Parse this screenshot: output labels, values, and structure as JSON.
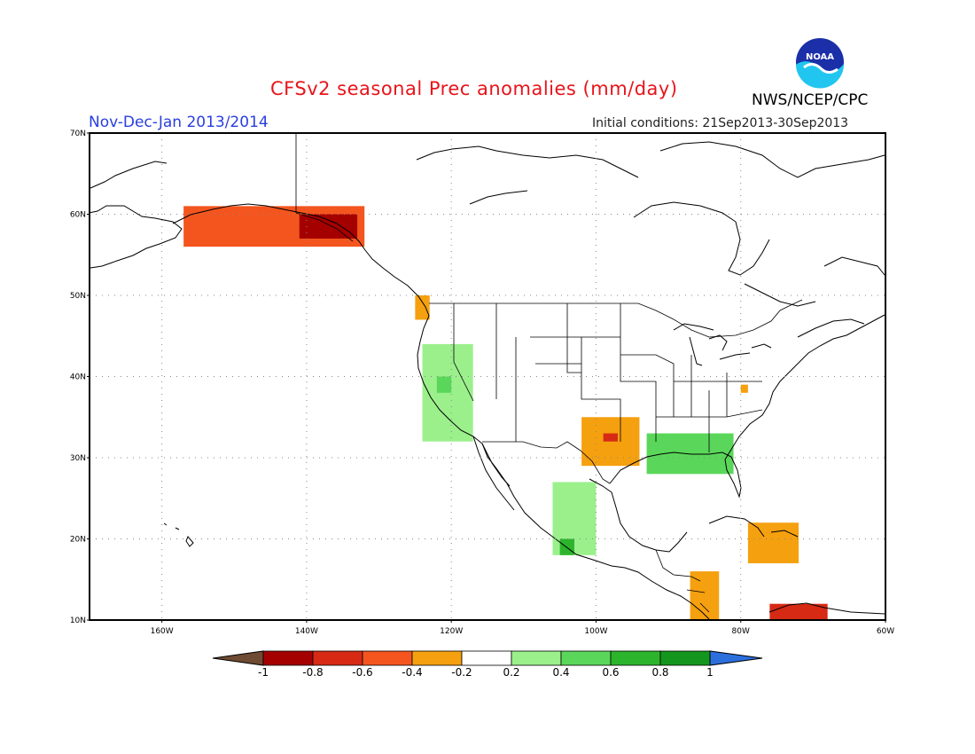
{
  "header": {
    "title": "CFSv2 seasonal Prec anomalies (mm/day)",
    "period": "Nov-Dec-Jan 2013/2014",
    "initial_conditions": "Initial conditions: 21Sep2013-30Sep2013",
    "agency": "NWS/NCEP/CPC",
    "logo_text": "NOAA"
  },
  "map": {
    "lat_labels": [
      "70N",
      "60N",
      "50N",
      "40N",
      "30N",
      "20N",
      "10N"
    ],
    "lon_labels": [
      "160W",
      "140W",
      "120W",
      "100W",
      "80W",
      "60W"
    ],
    "lat_range": [
      10,
      70
    ],
    "lon_range": [
      -170,
      -60
    ],
    "grid": "dotted every 10 degrees"
  },
  "colorbar": {
    "labels": [
      "-1",
      "-0.8",
      "-0.6",
      "-0.4",
      "-0.2",
      "0.2",
      "0.4",
      "0.6",
      "0.8",
      "1"
    ],
    "colors": {
      "below_-1": "#6e4b32",
      "-1_-0.8": "#a50000",
      "-0.8_-0.6": "#d62a14",
      "-0.6_-0.4": "#f4551e",
      "-0.4_-0.2": "#f5a00f",
      "-0.2_0.2": "#ffffff",
      "0.2_0.4": "#9bf08c",
      "0.4_0.6": "#5ad75a",
      "0.6_0.8": "#2db42d",
      "0.8_1": "#14961e",
      "above_1": "#2b6fdc"
    }
  },
  "anomaly_regions": [
    {
      "name": "alaska-south-coast",
      "value": -0.6,
      "lon": [
        -157,
        -132
      ],
      "lat": [
        56,
        61
      ]
    },
    {
      "name": "alaska-panhandle",
      "value": -0.9,
      "lon": [
        -141,
        -133
      ],
      "lat": [
        57,
        60
      ]
    },
    {
      "name": "pacific-northwest-coast",
      "value": -0.3,
      "lon": [
        -125,
        -123
      ],
      "lat": [
        47,
        50
      ]
    },
    {
      "name": "california-nevada",
      "value": 0.3,
      "lon": [
        -124,
        -117
      ],
      "lat": [
        32,
        44
      ]
    },
    {
      "name": "california-central",
      "value": 0.5,
      "lon": [
        -122,
        -120
      ],
      "lat": [
        38,
        40
      ]
    },
    {
      "name": "oklahoma-texas",
      "value": -0.3,
      "lon": [
        -102,
        -94
      ],
      "lat": [
        29,
        35
      ]
    },
    {
      "name": "oklahoma-core",
      "value": -0.7,
      "lon": [
        -99,
        -97
      ],
      "lat": [
        32,
        33
      ]
    },
    {
      "name": "gulf-coast-southeast",
      "value": 0.4,
      "lon": [
        -93,
        -81
      ],
      "lat": [
        28,
        33
      ]
    },
    {
      "name": "western-mexico",
      "value": 0.3,
      "lon": [
        -106,
        -100
      ],
      "lat": [
        18,
        27
      ]
    },
    {
      "name": "western-mexico-core",
      "value": 0.6,
      "lon": [
        -105,
        -103
      ],
      "lat": [
        18,
        20
      ]
    },
    {
      "name": "central-america",
      "value": -0.3,
      "lon": [
        -87,
        -83
      ],
      "lat": [
        10,
        16
      ]
    },
    {
      "name": "caribbean",
      "value": -0.3,
      "lon": [
        -79,
        -72
      ],
      "lat": [
        17,
        22
      ]
    },
    {
      "name": "venezuela-coast",
      "value": -0.7,
      "lon": [
        -76,
        -68
      ],
      "lat": [
        10,
        12
      ]
    },
    {
      "name": "virginia",
      "value": -0.3,
      "lon": [
        -80,
        -79
      ],
      "lat": [
        38,
        39
      ]
    }
  ]
}
